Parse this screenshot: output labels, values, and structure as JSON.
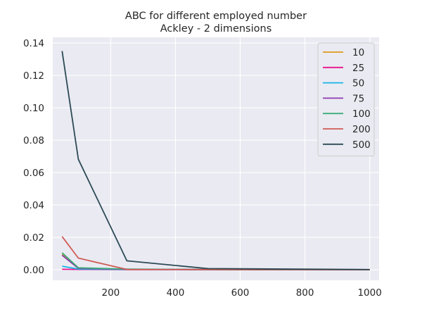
{
  "chart_data": {
    "type": "line",
    "title": "ABC for different employed number",
    "subtitle": "Ackley - 2 dimensions",
    "xlabel": "",
    "ylabel": "",
    "xlim": [
      21,
      1029
    ],
    "ylim": [
      -0.0065,
      0.1435
    ],
    "x_ticks": [
      200,
      400,
      600,
      800,
      1000
    ],
    "x_tick_labels": [
      "200",
      "400",
      "600",
      "800",
      "1000"
    ],
    "y_ticks": [
      0.0,
      0.02,
      0.04,
      0.06,
      0.08,
      0.1,
      0.12,
      0.14
    ],
    "y_tick_labels": [
      "0.00",
      "0.02",
      "0.04",
      "0.06",
      "0.08",
      "0.10",
      "0.12",
      "0.14"
    ],
    "grid": true,
    "legend_position": "top-right",
    "x": [
      50,
      100,
      250,
      500,
      1000
    ],
    "series": [
      {
        "name": "10",
        "color": "#e09a1a",
        "values": [
          0.0095,
          0.001,
          0.0003,
          0.0001,
          0.0
        ]
      },
      {
        "name": "25",
        "color": "#e8128c",
        "values": [
          0.0003,
          0.0002,
          0.0001,
          0.0001,
          0.0
        ]
      },
      {
        "name": "50",
        "color": "#18b4e8",
        "values": [
          0.0022,
          0.0004,
          0.0002,
          0.0001,
          0.0
        ]
      },
      {
        "name": "75",
        "color": "#8e3ab0",
        "values": [
          0.009,
          0.0008,
          0.0003,
          0.0001,
          0.0
        ]
      },
      {
        "name": "100",
        "color": "#3aae78",
        "values": [
          0.0105,
          0.0012,
          0.0004,
          0.0001,
          0.0
        ]
      },
      {
        "name": "200",
        "color": "#d05a55",
        "values": [
          0.0205,
          0.0072,
          0.0002,
          0.0001,
          0.0
        ]
      },
      {
        "name": "500",
        "color": "#2b4a55",
        "values": [
          0.135,
          0.0682,
          0.0055,
          0.0007,
          0.0001
        ]
      }
    ],
    "style": {
      "plot_background": "#eaeaf2",
      "grid_color": "#ffffff",
      "legend_background": "#eaeaf2",
      "legend_border": "#cccccc"
    }
  }
}
